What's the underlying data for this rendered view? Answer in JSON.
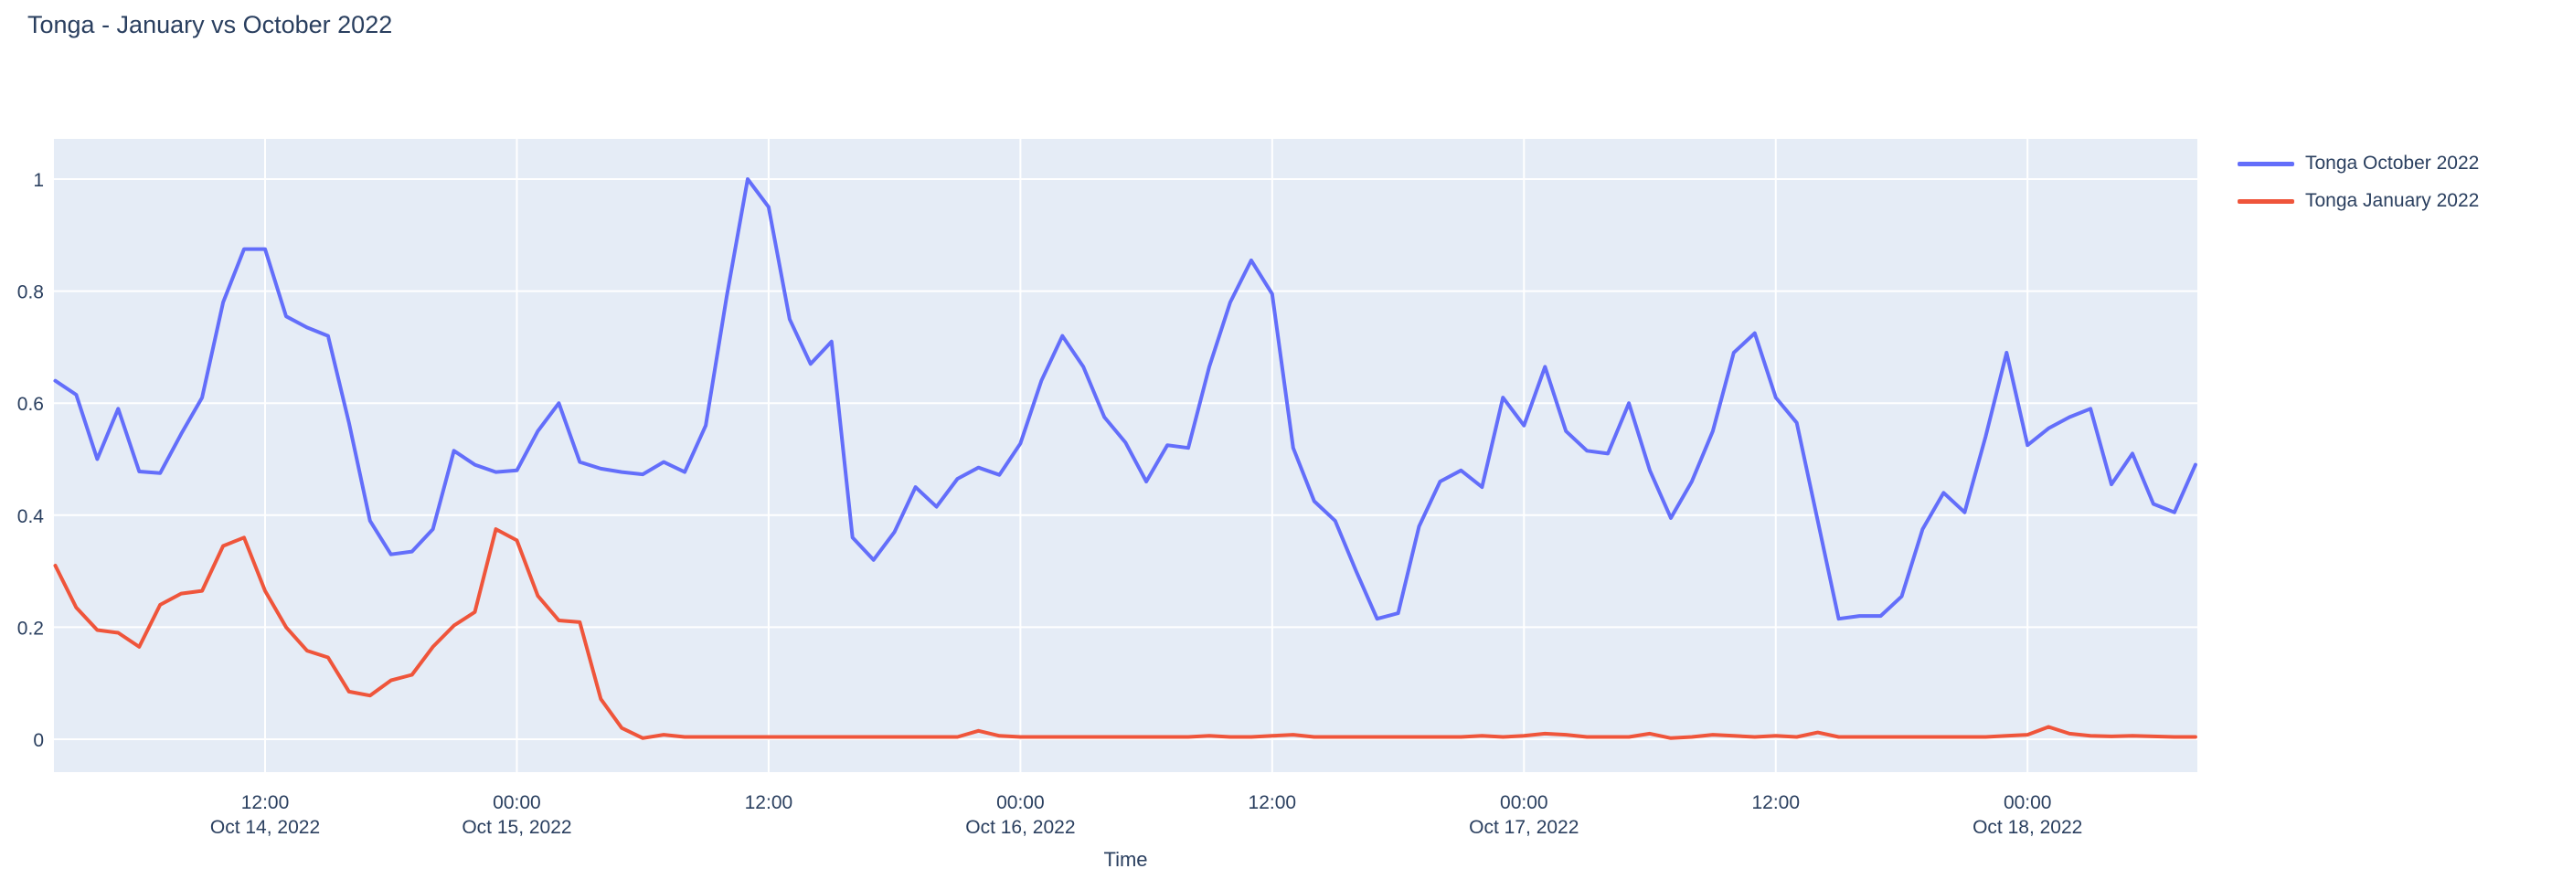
{
  "title": "Tonga - January vs October 2022",
  "xaxis": {
    "title": "Time",
    "ticks": [
      {
        "hour": 12,
        "time": "12:00",
        "date": "Oct 14, 2022"
      },
      {
        "hour": 24,
        "time": "00:00",
        "date": "Oct 15, 2022"
      },
      {
        "hour": 36,
        "time": "12:00",
        "date": ""
      },
      {
        "hour": 48,
        "time": "00:00",
        "date": "Oct 16, 2022"
      },
      {
        "hour": 60,
        "time": "12:00",
        "date": ""
      },
      {
        "hour": 72,
        "time": "00:00",
        "date": "Oct 17, 2022"
      },
      {
        "hour": 84,
        "time": "12:00",
        "date": ""
      },
      {
        "hour": 96,
        "time": "00:00",
        "date": "Oct 18, 2022"
      }
    ]
  },
  "yaxis": {
    "ticks": [
      {
        "value": 0.0,
        "label": "0"
      },
      {
        "value": 0.2,
        "label": "0.2"
      },
      {
        "value": 0.4,
        "label": "0.4"
      },
      {
        "value": 0.6,
        "label": "0.6"
      },
      {
        "value": 0.8,
        "label": "0.8"
      },
      {
        "value": 1.0,
        "label": "1"
      }
    ]
  },
  "legend": [
    {
      "label": "Tonga October 2022",
      "color": "#636EFA"
    },
    {
      "label": "Tonga January 2022",
      "color": "#EF553B"
    }
  ],
  "colors": {
    "plot_background": "#E5ECF6",
    "gridline": "#FFFFFF",
    "text": "#2a3f5f",
    "page_background": "#FFFFFF"
  },
  "chart_data": {
    "type": "line",
    "title": "Tonga - January vs October 2022",
    "xlabel": "Time",
    "ylabel": "",
    "x_start": "2022-10-14 02:00",
    "x_step_hours": 1,
    "x_start_hour_index": 2,
    "x_range_hours": [
      1.9,
      104.3
    ],
    "ylim": [
      -0.06,
      1.07
    ],
    "grid": true,
    "legend_position": "right",
    "series": [
      {
        "name": "Tonga October 2022",
        "color": "#636EFA",
        "values": [
          0.64,
          0.615,
          0.5,
          0.59,
          0.478,
          0.475,
          0.545,
          0.61,
          0.78,
          0.875,
          0.875,
          0.755,
          0.735,
          0.72,
          0.565,
          0.39,
          0.33,
          0.335,
          0.375,
          0.515,
          0.49,
          0.477,
          0.48,
          0.55,
          0.6,
          0.495,
          0.483,
          0.477,
          0.473,
          0.495,
          0.477,
          0.56,
          0.79,
          1.0,
          0.95,
          0.75,
          0.67,
          0.71,
          0.36,
          0.32,
          0.37,
          0.45,
          0.415,
          0.465,
          0.485,
          0.472,
          0.528,
          0.64,
          0.72,
          0.665,
          0.575,
          0.53,
          0.46,
          0.525,
          0.52,
          0.665,
          0.78,
          0.855,
          0.795,
          0.52,
          0.425,
          0.39,
          0.3,
          0.215,
          0.225,
          0.38,
          0.46,
          0.48,
          0.45,
          0.61,
          0.56,
          0.665,
          0.55,
          0.515,
          0.51,
          0.6,
          0.48,
          0.395,
          0.46,
          0.55,
          0.69,
          0.725,
          0.61,
          0.565,
          0.39,
          0.215,
          0.22,
          0.22,
          0.255,
          0.375,
          0.44,
          0.405,
          0.54,
          0.69,
          0.525,
          0.555,
          0.575,
          0.59,
          0.455,
          0.51,
          0.42,
          0.405,
          0.49
        ]
      },
      {
        "name": "Tonga January 2022",
        "color": "#EF553B",
        "values": [
          0.31,
          0.235,
          0.195,
          0.19,
          0.165,
          0.24,
          0.26,
          0.265,
          0.345,
          0.36,
          0.265,
          0.2,
          0.158,
          0.146,
          0.085,
          0.078,
          0.105,
          0.115,
          0.165,
          0.203,
          0.227,
          0.375,
          0.355,
          0.256,
          0.212,
          0.209,
          0.072,
          0.02,
          0.002,
          0.008,
          0.004,
          0.004,
          0.004,
          0.004,
          0.004,
          0.004,
          0.004,
          0.004,
          0.004,
          0.004,
          0.004,
          0.004,
          0.004,
          0.004,
          0.015,
          0.006,
          0.004,
          0.004,
          0.004,
          0.004,
          0.004,
          0.004,
          0.004,
          0.004,
          0.004,
          0.006,
          0.004,
          0.004,
          0.006,
          0.008,
          0.004,
          0.004,
          0.004,
          0.004,
          0.004,
          0.004,
          0.004,
          0.004,
          0.006,
          0.004,
          0.006,
          0.01,
          0.008,
          0.004,
          0.004,
          0.004,
          0.01,
          0.002,
          0.004,
          0.008,
          0.006,
          0.004,
          0.006,
          0.004,
          0.012,
          0.004,
          0.004,
          0.004,
          0.004,
          0.004,
          0.004,
          0.004,
          0.004,
          0.006,
          0.008,
          0.022,
          0.01,
          0.006,
          0.005,
          0.006,
          0.005,
          0.004,
          0.004
        ]
      }
    ]
  }
}
